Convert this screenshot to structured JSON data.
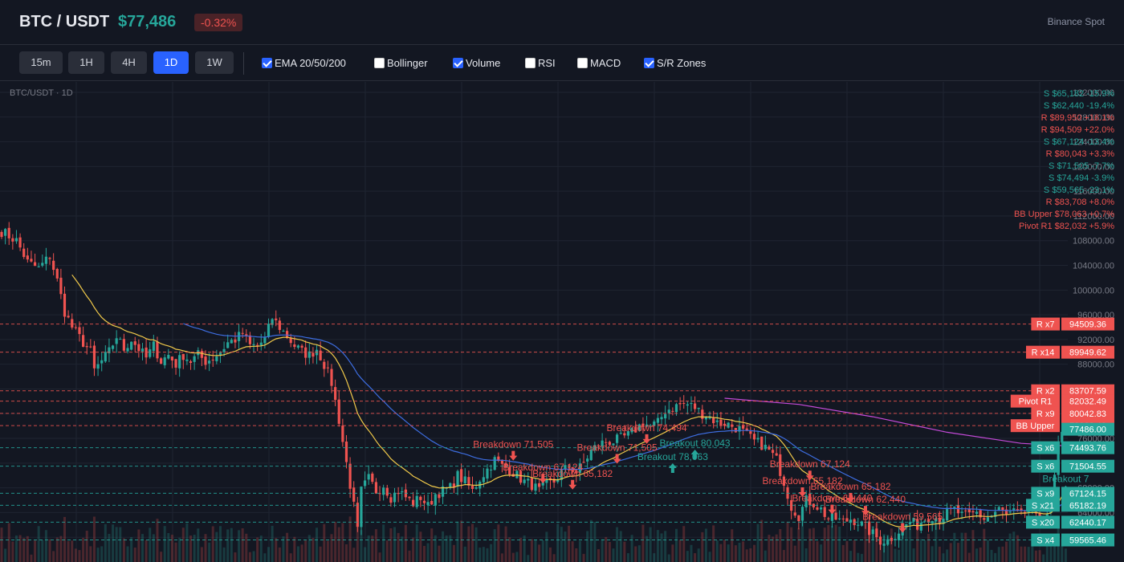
{
  "header": {
    "pair": "BTC / USDT",
    "price": "$77,486",
    "change": "-0.32%",
    "exchange": "Binance Spot"
  },
  "toolbar": {
    "timeframes": [
      "15m",
      "1H",
      "4H",
      "1D",
      "1W"
    ],
    "active_timeframe": "1D",
    "indicators": [
      {
        "label": "EMA 20/50/200",
        "checked": true
      },
      {
        "label": "Bollinger",
        "checked": false
      },
      {
        "label": "Volume",
        "checked": true
      },
      {
        "label": "RSI",
        "checked": false
      },
      {
        "label": "MACD",
        "checked": false
      },
      {
        "label": "S/R Zones",
        "checked": true
      }
    ]
  },
  "colors": {
    "up": "#26a69a",
    "down": "#ef5350",
    "ema20": "#f0c94a",
    "ema50": "#3d6de0",
    "ema200": "#c44ad8",
    "background": "#131722",
    "grid": "#1f2431"
  },
  "chart_data": {
    "type": "candlestick",
    "title": "BTC/USDT · 1D",
    "ylim": [
      56000,
      132000
    ],
    "y_ticks": [
      132000,
      128000,
      124000,
      120000,
      116000,
      112000,
      108000,
      104000,
      100000,
      96000,
      92000,
      88000,
      84000,
      80000,
      76000,
      72000,
      68000,
      64000,
      60000
    ],
    "y_tick_labels": [
      "132000.00",
      "128000.00",
      "124000.00",
      "120000.00",
      "116000.00",
      "112000.00",
      "108000.00",
      "104000.00",
      "100000.00",
      "96000.00",
      "92000.00",
      "88000.00",
      "84000.00",
      "80000.00",
      "76000.00",
      "72000.00",
      "68000.00",
      "64000.00",
      "60000.00"
    ],
    "close_anchors": [
      [
        0,
        109500
      ],
      [
        4,
        108000
      ],
      [
        7,
        104500
      ],
      [
        10,
        103500
      ],
      [
        13,
        105500
      ],
      [
        15,
        101500
      ],
      [
        17,
        96500
      ],
      [
        19,
        94000
      ],
      [
        22,
        91500
      ],
      [
        24,
        90000
      ],
      [
        25,
        87000
      ],
      [
        27,
        88500
      ],
      [
        29,
        90000
      ],
      [
        31,
        92500
      ],
      [
        33,
        90500
      ],
      [
        35,
        92000
      ],
      [
        37,
        90500
      ],
      [
        39,
        89000
      ],
      [
        41,
        91000
      ],
      [
        43,
        88500
      ],
      [
        45,
        89500
      ],
      [
        47,
        88000
      ],
      [
        49,
        89500
      ],
      [
        51,
        88500
      ],
      [
        53,
        89500
      ],
      [
        55,
        88500
      ],
      [
        57,
        89000
      ],
      [
        59,
        90000
      ],
      [
        61,
        91500
      ],
      [
        63,
        92000
      ],
      [
        65,
        93000
      ],
      [
        67,
        91000
      ],
      [
        69,
        91000
      ],
      [
        71,
        92000
      ],
      [
        73,
        95500
      ],
      [
        75,
        94000
      ],
      [
        77,
        92500
      ],
      [
        79,
        91000
      ],
      [
        81,
        90000
      ],
      [
        83,
        89500
      ],
      [
        85,
        90500
      ],
      [
        87,
        88000
      ],
      [
        89,
        85000
      ],
      [
        91,
        79000
      ],
      [
        93,
        72000
      ],
      [
        95,
        65000
      ],
      [
        96,
        61000
      ],
      [
        97,
        67500
      ],
      [
        99,
        69500
      ],
      [
        101,
        67500
      ],
      [
        103,
        68500
      ],
      [
        105,
        66500
      ],
      [
        107,
        67500
      ],
      [
        109,
        66500
      ],
      [
        111,
        65500
      ],
      [
        113,
        66500
      ],
      [
        115,
        65000
      ],
      [
        117,
        67000
      ],
      [
        119,
        67500
      ],
      [
        121,
        68000
      ],
      [
        123,
        70000
      ],
      [
        125,
        69000
      ],
      [
        127,
        67500
      ],
      [
        129,
        69500
      ],
      [
        131,
        71000
      ],
      [
        133,
        72500
      ],
      [
        135,
        71500
      ],
      [
        137,
        71000
      ],
      [
        139,
        70000
      ],
      [
        141,
        69000
      ],
      [
        143,
        68500
      ],
      [
        145,
        67500
      ],
      [
        147,
        68500
      ],
      [
        149,
        69000
      ],
      [
        151,
        70500
      ],
      [
        153,
        71500
      ],
      [
        155,
        70500
      ],
      [
        157,
        72000
      ],
      [
        159,
        74000
      ],
      [
        161,
        75000
      ],
      [
        163,
        75500
      ],
      [
        165,
        75500
      ],
      [
        167,
        76000
      ],
      [
        169,
        76500
      ],
      [
        171,
        77500
      ],
      [
        173,
        78500
      ],
      [
        175,
        78000
      ],
      [
        177,
        78500
      ],
      [
        179,
        80500
      ],
      [
        181,
        81000
      ],
      [
        183,
        81500
      ],
      [
        185,
        81500
      ],
      [
        187,
        81000
      ],
      [
        189,
        80000
      ],
      [
        191,
        79500
      ],
      [
        193,
        78500
      ],
      [
        195,
        78500
      ],
      [
        197,
        78000
      ],
      [
        199,
        77500
      ],
      [
        201,
        76500
      ],
      [
        203,
        75500
      ],
      [
        205,
        75000
      ],
      [
        207,
        74000
      ],
      [
        209,
        72500
      ],
      [
        211,
        69000
      ],
      [
        213,
        65000
      ],
      [
        215,
        63500
      ],
      [
        217,
        66000
      ],
      [
        219,
        65500
      ],
      [
        221,
        64500
      ],
      [
        223,
        63000
      ],
      [
        225,
        63000
      ],
      [
        227,
        62500
      ],
      [
        229,
        63000
      ],
      [
        231,
        62500
      ],
      [
        233,
        61500
      ],
      [
        235,
        60500
      ],
      [
        237,
        59500
      ],
      [
        239,
        59500
      ],
      [
        241,
        60500
      ],
      [
        243,
        61500
      ],
      [
        245,
        62500
      ],
      [
        247,
        62000
      ],
      [
        249,
        63000
      ],
      [
        251,
        63500
      ],
      [
        253,
        63000
      ],
      [
        255,
        64000
      ],
      [
        257,
        64500
      ],
      [
        259,
        63500
      ],
      [
        261,
        63500
      ],
      [
        263,
        64000
      ],
      [
        265,
        63000
      ],
      [
        267,
        63500
      ],
      [
        269,
        64500
      ],
      [
        271,
        63500
      ],
      [
        273,
        64000
      ],
      [
        275,
        63500
      ],
      [
        277,
        64500
      ],
      [
        279,
        63000
      ],
      [
        281,
        63500
      ],
      [
        283,
        64500
      ],
      [
        285,
        75000
      ],
      [
        287,
        77486
      ]
    ],
    "volume": "enabled",
    "ema_series": [
      {
        "period": 20,
        "color_key": "ema20"
      },
      {
        "period": 50,
        "color_key": "ema50"
      },
      {
        "period": 200,
        "color_key": "ema200",
        "points": [
          [
            195,
            82500
          ],
          [
            215,
            81500
          ],
          [
            235,
            79500
          ],
          [
            255,
            77000
          ],
          [
            275,
            75200
          ],
          [
            287,
            74800
          ]
        ]
      }
    ],
    "sr_levels": [
      {
        "tag": "R x7",
        "value_label": "94509.36",
        "price": 94509.36,
        "kind": "resistance"
      },
      {
        "tag": "R x14",
        "value_label": "89949.62",
        "price": 89949.62,
        "kind": "resistance"
      },
      {
        "tag": "R x2",
        "value_label": "83707.59",
        "price": 83707.59,
        "kind": "resistance"
      },
      {
        "tag": "Pivot R1",
        "value_label": "82032.49",
        "price": 82032.49,
        "kind": "resistance"
      },
      {
        "tag": "R x9",
        "value_label": "80042.83",
        "price": 80042.83,
        "kind": "resistance"
      },
      {
        "tag": "BB Upper",
        "value_label": "78063.48",
        "price": 78063.48,
        "kind": "resistance"
      },
      {
        "tag": "",
        "value_label": "77486.00",
        "price": 77486.0,
        "kind": "current"
      },
      {
        "tag": "S x6",
        "value_label": "74493.76",
        "price": 74493.76,
        "kind": "support"
      },
      {
        "tag": "S x6",
        "value_label": "71504.55",
        "price": 71504.55,
        "kind": "support"
      },
      {
        "tag": "S x9",
        "value_label": "67124.15",
        "price": 67124.15,
        "kind": "support"
      },
      {
        "tag": "S x21",
        "value_label": "65182.19",
        "price": 65182.19,
        "kind": "support"
      },
      {
        "tag": "S x20",
        "value_label": "62440.17",
        "price": 62440.17,
        "kind": "support"
      },
      {
        "tag": "S x4",
        "value_label": "59565.46",
        "price": 59565.46,
        "kind": "support"
      }
    ],
    "level_legend": [
      {
        "text": "S $65,182 -15.9%",
        "kind": "support"
      },
      {
        "text": "S $62,440 -19.4%",
        "kind": "support"
      },
      {
        "text": "R $89,950 +16.1%",
        "kind": "resistance"
      },
      {
        "text": "R $94,509 +22.0%",
        "kind": "resistance"
      },
      {
        "text": "S $67,124 -13.4%",
        "kind": "support"
      },
      {
        "text": "R $80,043 +3.3%",
        "kind": "resistance"
      },
      {
        "text": "S $71,505 -7.7%",
        "kind": "support"
      },
      {
        "text": "S $74,494 -3.9%",
        "kind": "support"
      },
      {
        "text": "S $59,565 -23.1%",
        "kind": "support"
      },
      {
        "text": "R $83,708 +8.0%",
        "kind": "resistance"
      },
      {
        "text": "BB Upper $78,063 +0.7%",
        "kind": "resistance"
      },
      {
        "text": "Pivot R1 $82,032 +5.9%",
        "kind": "resistance"
      }
    ],
    "annotations": [
      {
        "text": "Breakdown 71,505",
        "x": 138,
        "price": 74500,
        "kind": "down"
      },
      {
        "text": "Breakdown 67,124",
        "x": 146,
        "price": 70800,
        "kind": "down"
      },
      {
        "text": "Breakdown 65,182",
        "x": 154,
        "price": 69800,
        "kind": "down"
      },
      {
        "text": "Breakdown 74,494",
        "x": 174,
        "price": 77200,
        "kind": "down"
      },
      {
        "text": "Breakdown 71,505",
        "x": 166,
        "price": 74000,
        "kind": "down"
      },
      {
        "text": "Breakout 80,043",
        "x": 187,
        "price": 74700,
        "kind": "up"
      },
      {
        "text": "Breakout 78,063",
        "x": 181,
        "price": 72500,
        "kind": "up"
      },
      {
        "text": "Breakdown 67,124",
        "x": 218,
        "price": 71300,
        "kind": "down"
      },
      {
        "text": "Breakdown 65,182",
        "x": 229,
        "price": 67700,
        "kind": "down"
      },
      {
        "text": "Breakdown 65,182",
        "x": 216,
        "price": 68600,
        "kind": "down"
      },
      {
        "text": "Breakdown 62,440",
        "x": 224,
        "price": 65800,
        "kind": "down"
      },
      {
        "text": "Breakdown 62,440",
        "x": 233,
        "price": 65600,
        "kind": "down"
      },
      {
        "text": "Breakdown 59,565",
        "x": 243,
        "price": 62800,
        "kind": "down"
      },
      {
        "text": "Breakout 7",
        "x": 287,
        "price": 68900,
        "kind": "up"
      }
    ]
  }
}
